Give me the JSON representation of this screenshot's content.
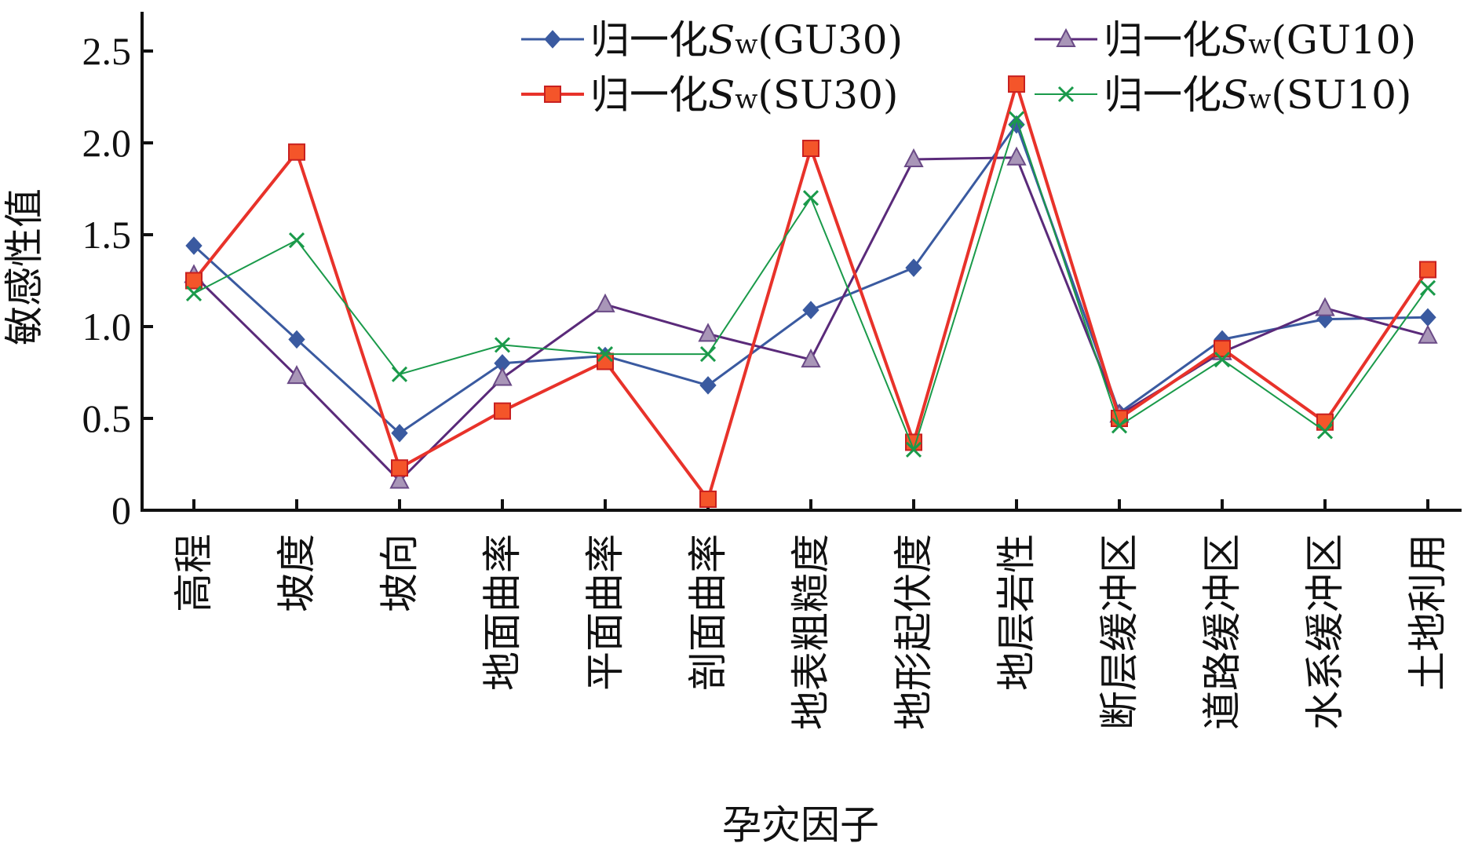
{
  "chart_data": {
    "type": "line",
    "title": "",
    "xlabel": "孕灾因子",
    "ylabel": "敏感性值",
    "ylim": [
      0,
      2.7
    ],
    "yticks": [
      0,
      0.5,
      1.0,
      1.5,
      2.0,
      2.5
    ],
    "ytick_labels": [
      "0",
      "0.5",
      "1.0",
      "1.5",
      "2.0",
      "2.5"
    ],
    "grid": false,
    "legend_position": "top-right",
    "categories": [
      "高程",
      "坡度",
      "坡向",
      "地面曲率",
      "平面曲率",
      "剖面曲率",
      "地表粗糙度",
      "地形起伏度",
      "地层岩性",
      "断层缓冲区",
      "道路缓冲区",
      "水系缓冲区",
      "土地利用"
    ],
    "series": [
      {
        "name": "归一化Sw(GU30)",
        "name_prefix": "归一化",
        "name_symbol": "S",
        "name_subscript": "w",
        "name_suffix": "(GU30)",
        "color": "#3a5aa0",
        "marker": "diamond",
        "values": [
          1.44,
          0.93,
          0.42,
          0.8,
          0.84,
          0.68,
          1.09,
          1.32,
          2.1,
          0.53,
          0.93,
          1.04,
          1.05
        ]
      },
      {
        "name": "归一化Sw(GU10)",
        "name_prefix": "归一化",
        "name_symbol": "S",
        "name_subscript": "w",
        "name_suffix": "(GU10)",
        "color": "#5a2a7a",
        "marker": "triangle",
        "values": [
          1.28,
          0.73,
          0.16,
          0.72,
          1.12,
          0.96,
          0.82,
          1.91,
          1.92,
          0.52,
          0.86,
          1.1,
          0.95
        ]
      },
      {
        "name": "归一化Sw(SU30)",
        "name_prefix": "归一化",
        "name_symbol": "S",
        "name_subscript": "w",
        "name_suffix": "(SU30)",
        "color": "#e8322a",
        "marker": "square",
        "values": [
          1.25,
          1.95,
          0.23,
          0.54,
          0.81,
          0.06,
          1.97,
          0.37,
          2.32,
          0.5,
          0.88,
          0.48,
          1.31
        ]
      },
      {
        "name": "归一化Sw(SU10)",
        "name_prefix": "归一化",
        "name_symbol": "S",
        "name_subscript": "w",
        "name_suffix": "(SU10)",
        "color": "#1a9a4a",
        "marker": "x",
        "values": [
          1.18,
          1.47,
          0.74,
          0.9,
          0.85,
          0.85,
          1.7,
          0.33,
          2.13,
          0.46,
          0.82,
          0.43,
          1.21
        ]
      }
    ]
  }
}
